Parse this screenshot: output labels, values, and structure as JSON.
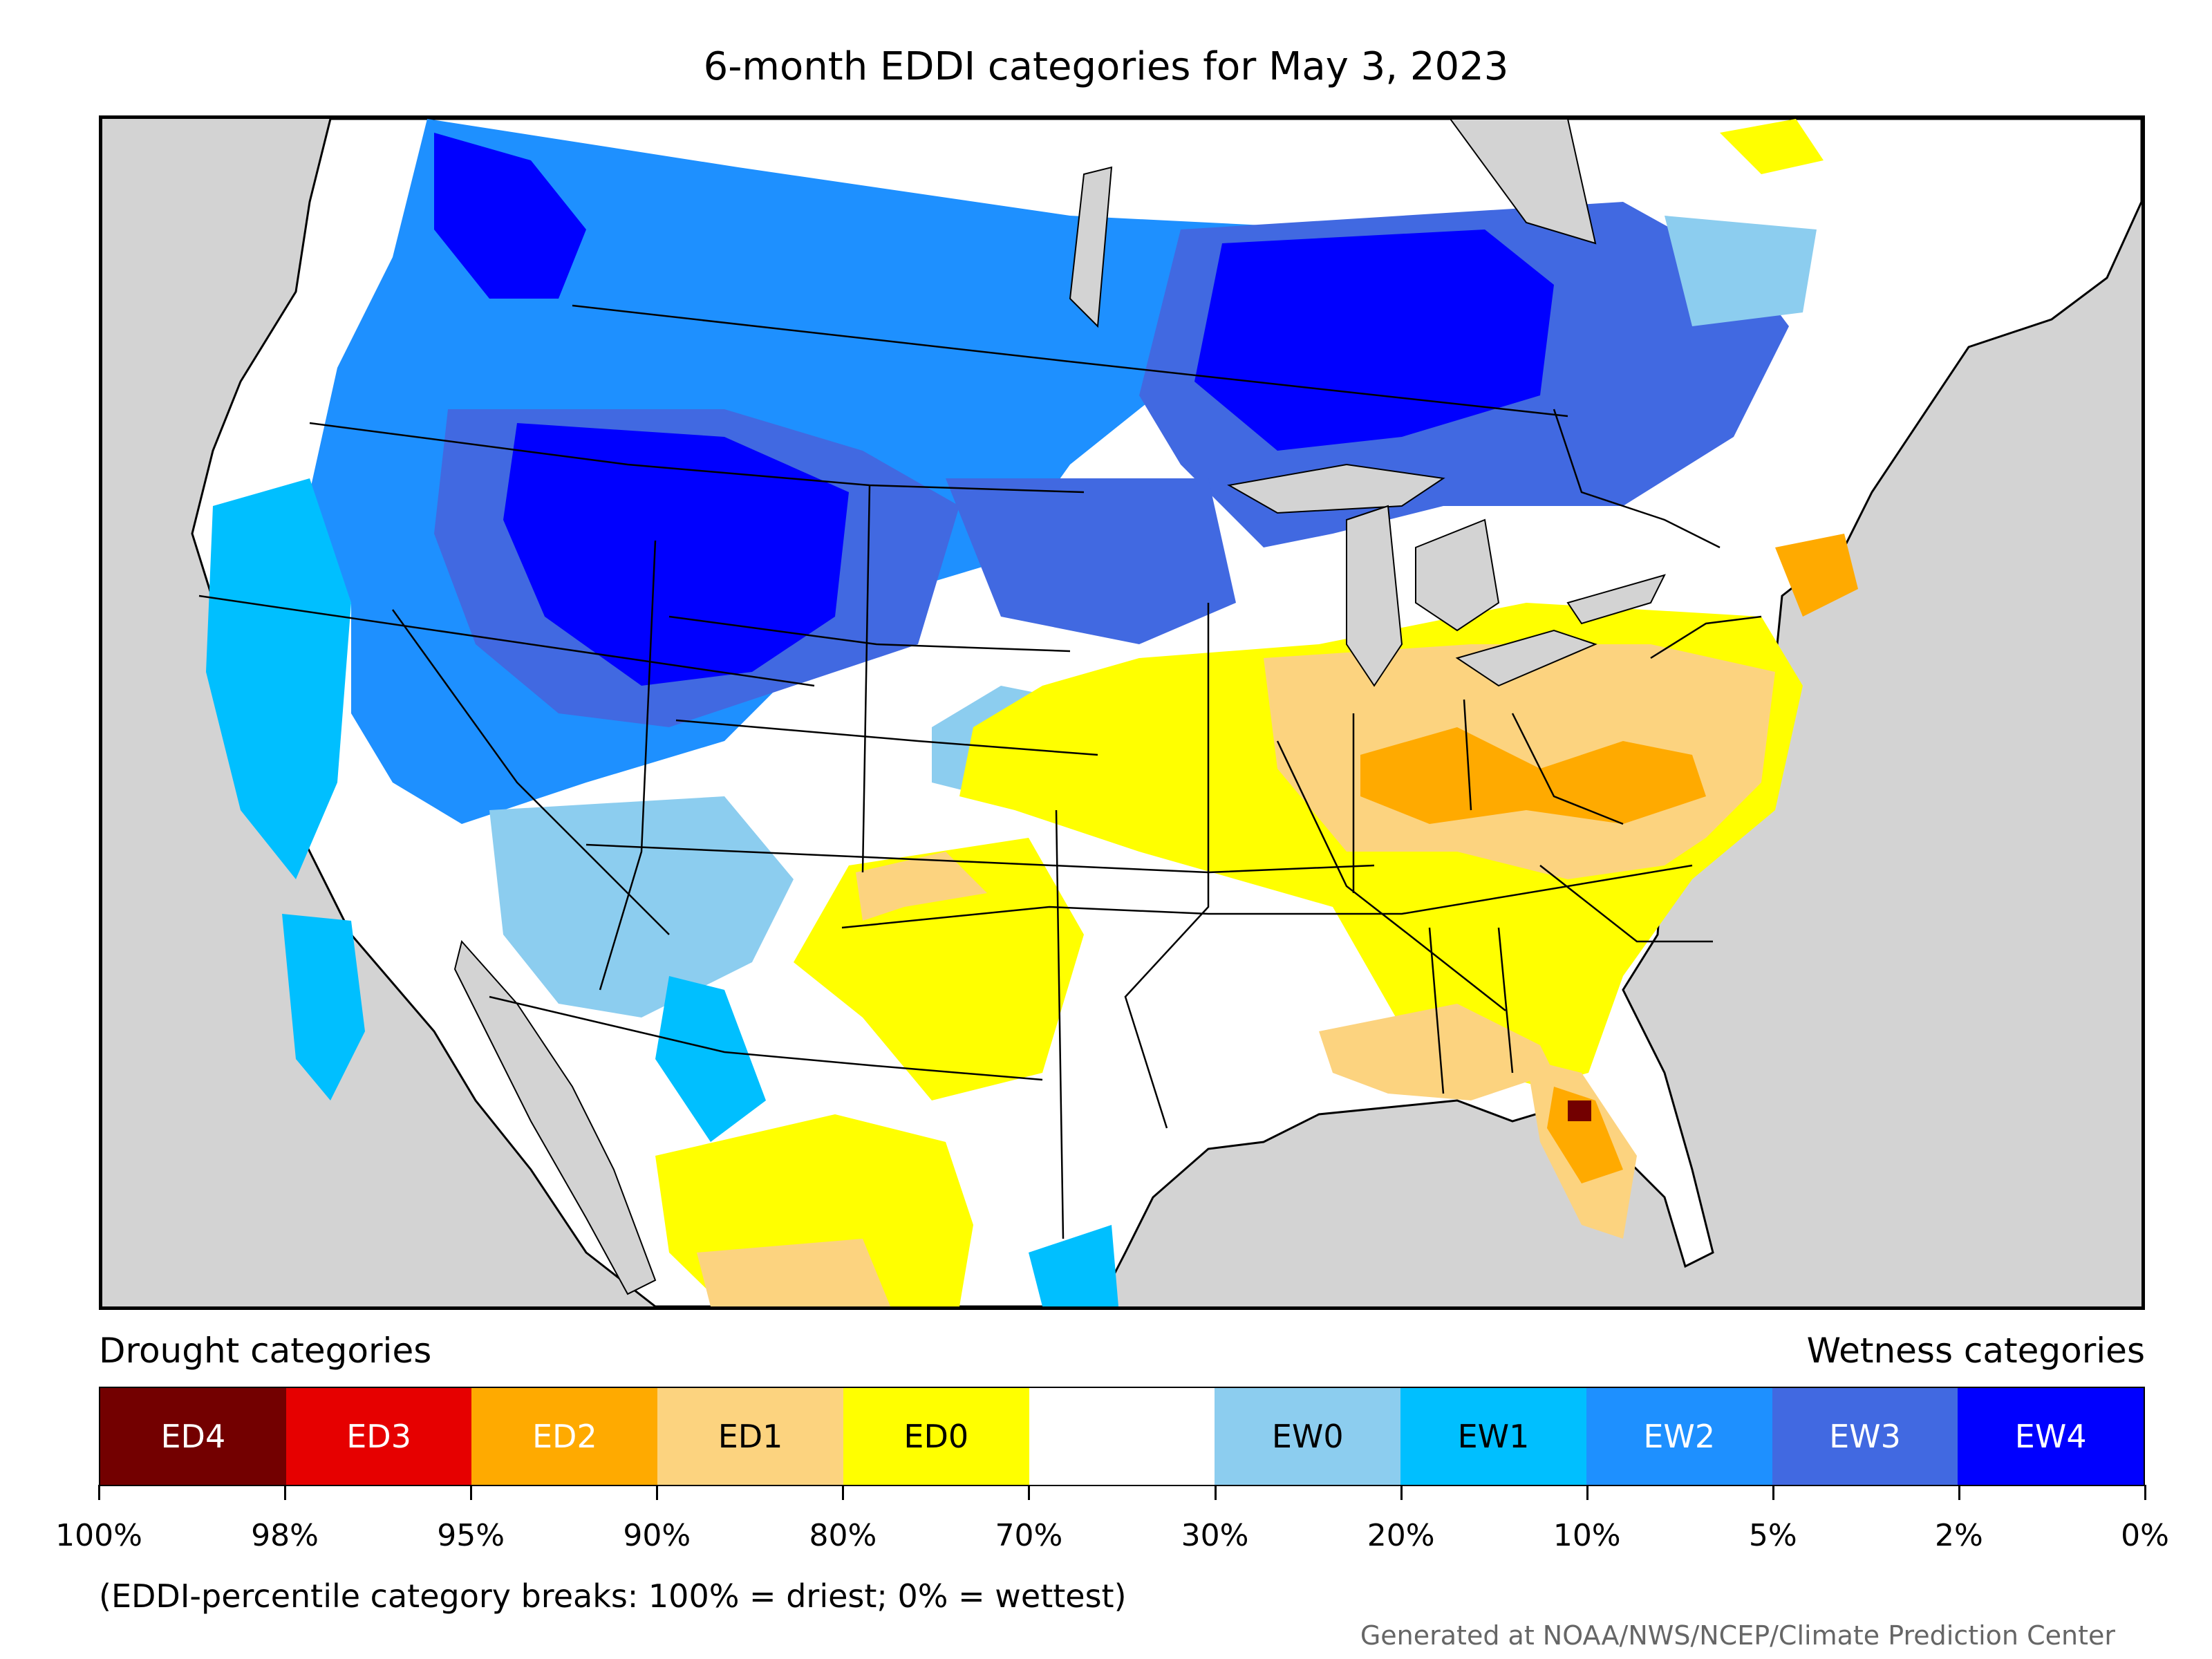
{
  "title": "6-month EDDI categories for May 3, 2023",
  "legend": {
    "left_label": "Drought categories",
    "right_label": "Wetness categories",
    "categories": [
      {
        "label": "ED4",
        "color": "#730000",
        "text_color": "#ffffff"
      },
      {
        "label": "ED3",
        "color": "#e60000",
        "text_color": "#ffffff"
      },
      {
        "label": "ED2",
        "color": "#ffaa00",
        "text_color": "#ffffff"
      },
      {
        "label": "ED1",
        "color": "#fcd37f",
        "text_color": "#000000"
      },
      {
        "label": "ED0",
        "color": "#ffff00",
        "text_color": "#000000"
      },
      {
        "label": "",
        "color": "#ffffff",
        "text_color": "#000000"
      },
      {
        "label": "EW0",
        "color": "#8ccdef",
        "text_color": "#000000"
      },
      {
        "label": "EW1",
        "color": "#00bfff",
        "text_color": "#000000"
      },
      {
        "label": "EW2",
        "color": "#1e90ff",
        "text_color": "#ffffff"
      },
      {
        "label": "EW3",
        "color": "#4169e1",
        "text_color": "#ffffff"
      },
      {
        "label": "EW4",
        "color": "#0000ff",
        "text_color": "#ffffff"
      }
    ],
    "breaks": [
      "100%",
      "98%",
      "95%",
      "90%",
      "80%",
      "70%",
      "30%",
      "20%",
      "10%",
      "5%",
      "2%",
      "0%"
    ]
  },
  "note": "(EDDI-percentile category breaks: 100% = driest; 0% = wettest)",
  "credit": "Generated at NOAA/NWS/NCEP/Climate Prediction Center",
  "map": {
    "background_color": "#d3d3d3",
    "water_color": "#d3d3d3",
    "border_color": "#000000"
  }
}
